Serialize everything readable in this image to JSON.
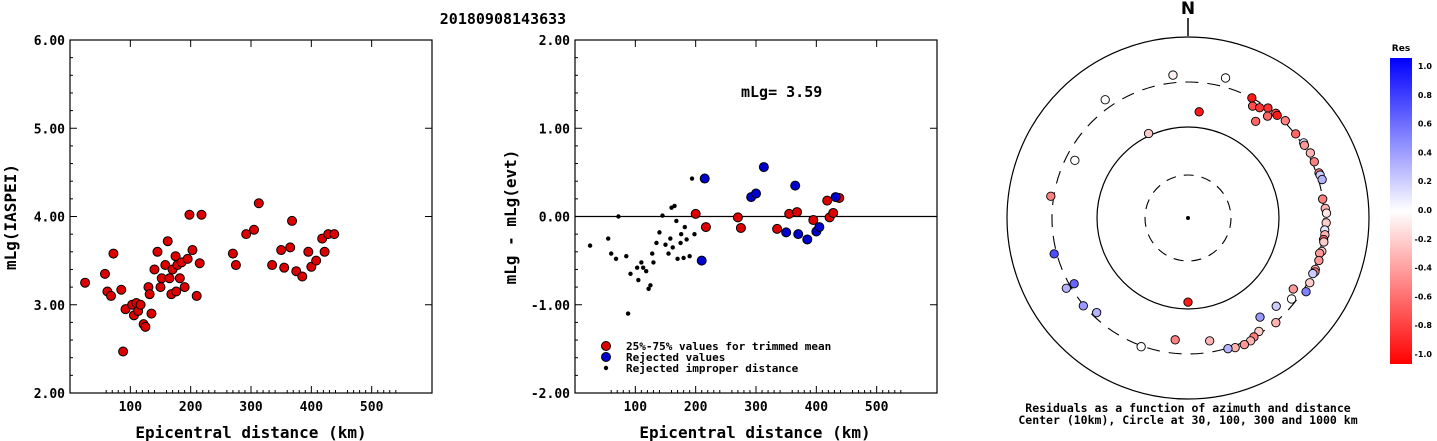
{
  "title": "20180908143633",
  "chart_data": [
    {
      "type": "scatter",
      "id": "magnitude-vs-distance",
      "xlabel": "Epicentral distance (km)",
      "ylabel": "mLg(IASPEI)",
      "xlim": [
        0,
        600
      ],
      "ylim": [
        2.0,
        6.0
      ],
      "xticks": [
        "100",
        "200",
        "300",
        "400",
        "500"
      ],
      "yticks": [
        "2.00",
        "3.00",
        "4.00",
        "5.00",
        "6.00"
      ],
      "marker_color": "#dd0000",
      "points": [
        [
          25,
          3.25
        ],
        [
          58,
          3.35
        ],
        [
          62,
          3.15
        ],
        [
          68,
          3.1
        ],
        [
          72,
          3.58
        ],
        [
          85,
          3.17
        ],
        [
          88,
          2.47
        ],
        [
          92,
          2.95
        ],
        [
          103,
          3.0
        ],
        [
          106,
          2.88
        ],
        [
          110,
          3.02
        ],
        [
          113,
          2.93
        ],
        [
          117,
          3.0
        ],
        [
          122,
          2.78
        ],
        [
          125,
          2.75
        ],
        [
          130,
          3.2
        ],
        [
          132,
          3.12
        ],
        [
          135,
          2.9
        ],
        [
          140,
          3.4
        ],
        [
          145,
          3.6
        ],
        [
          150,
          3.2
        ],
        [
          152,
          3.3
        ],
        [
          158,
          3.45
        ],
        [
          162,
          3.72
        ],
        [
          165,
          3.3
        ],
        [
          168,
          3.12
        ],
        [
          170,
          3.4
        ],
        [
          175,
          3.55
        ],
        [
          176,
          3.15
        ],
        [
          178,
          3.45
        ],
        [
          182,
          3.3
        ],
        [
          185,
          3.48
        ],
        [
          190,
          3.2
        ],
        [
          195,
          3.52
        ],
        [
          198,
          4.02
        ],
        [
          203,
          3.62
        ],
        [
          210,
          3.1
        ],
        [
          215,
          3.47
        ],
        [
          218,
          4.02
        ],
        [
          270,
          3.58
        ],
        [
          275,
          3.45
        ],
        [
          292,
          3.8
        ],
        [
          305,
          3.85
        ],
        [
          313,
          4.15
        ],
        [
          335,
          3.45
        ],
        [
          350,
          3.62
        ],
        [
          355,
          3.42
        ],
        [
          365,
          3.65
        ],
        [
          368,
          3.95
        ],
        [
          375,
          3.38
        ],
        [
          385,
          3.32
        ],
        [
          395,
          3.6
        ],
        [
          400,
          3.43
        ],
        [
          408,
          3.5
        ],
        [
          418,
          3.75
        ],
        [
          422,
          3.6
        ],
        [
          428,
          3.8
        ],
        [
          438,
          3.8
        ]
      ]
    },
    {
      "type": "scatter",
      "id": "residual-vs-distance",
      "xlabel": "Epicentral distance (km)",
      "ylabel": "mLg - mLg(evt)",
      "xlim": [
        0,
        600
      ],
      "ylim": [
        -2.0,
        2.0
      ],
      "xticks": [
        "100",
        "200",
        "300",
        "400",
        "500"
      ],
      "yticks": [
        "-2.00",
        "-1.00",
        "0.00",
        "1.00",
        "2.00"
      ],
      "annotation": "mLg= 3.59",
      "legend": [
        {
          "label": "25%-75% values for trimmed mean",
          "color": "#dd0000"
        },
        {
          "label": "Rejected values",
          "color": "#0000cc"
        },
        {
          "label": "Rejected improper distance",
          "color": "#000000"
        }
      ],
      "series": [
        {
          "name": "25%-75% values for trimmed mean",
          "color": "#dd0000",
          "points": [
            [
              200,
              0.03
            ],
            [
              217,
              -0.12
            ],
            [
              270,
              -0.01
            ],
            [
              275,
              -0.13
            ],
            [
              335,
              -0.14
            ],
            [
              355,
              0.03
            ],
            [
              368,
              0.05
            ],
            [
              395,
              -0.04
            ],
            [
              418,
              0.18
            ],
            [
              422,
              -0.01
            ],
            [
              428,
              0.04
            ],
            [
              438,
              0.21
            ]
          ]
        },
        {
          "name": "Rejected values",
          "color": "#0000cc",
          "points": [
            [
              210,
              -0.5
            ],
            [
              215,
              0.43
            ],
            [
              292,
              0.22
            ],
            [
              300,
              0.26
            ],
            [
              313,
              0.56
            ],
            [
              350,
              -0.18
            ],
            [
              365,
              0.35
            ],
            [
              370,
              -0.2
            ],
            [
              385,
              -0.26
            ],
            [
              400,
              -0.17
            ],
            [
              405,
              -0.12
            ],
            [
              432,
              0.22
            ]
          ]
        },
        {
          "name": "Rejected improper distance",
          "color": "#000000",
          "points": [
            [
              25,
              -0.33
            ],
            [
              55,
              -0.25
            ],
            [
              60,
              -0.42
            ],
            [
              68,
              -0.48
            ],
            [
              72,
              0.0
            ],
            [
              85,
              -0.45
            ],
            [
              88,
              -1.1
            ],
            [
              92,
              -0.65
            ],
            [
              103,
              -0.58
            ],
            [
              105,
              -0.72
            ],
            [
              110,
              -0.52
            ],
            [
              113,
              -0.58
            ],
            [
              118,
              -0.62
            ],
            [
              122,
              -0.82
            ],
            [
              125,
              -0.78
            ],
            [
              128,
              -0.42
            ],
            [
              130,
              -0.52
            ],
            [
              135,
              -0.3
            ],
            [
              140,
              -0.18
            ],
            [
              145,
              0.01
            ],
            [
              150,
              -0.32
            ],
            [
              155,
              -0.42
            ],
            [
              158,
              -0.25
            ],
            [
              160,
              0.1
            ],
            [
              162,
              -0.35
            ],
            [
              165,
              0.12
            ],
            [
              168,
              -0.05
            ],
            [
              170,
              -0.48
            ],
            [
              175,
              -0.3
            ],
            [
              176,
              -0.2
            ],
            [
              180,
              -0.47
            ],
            [
              182,
              -0.12
            ],
            [
              185,
              -0.26
            ],
            [
              190,
              -0.45
            ],
            [
              194,
              0.43
            ],
            [
              198,
              -0.2
            ]
          ]
        }
      ]
    },
    {
      "type": "polar-scatter",
      "id": "azimuthal-residuals",
      "north_label": "N",
      "caption": [
        "Residuals as a function of azimuth and distance",
        "Center (10km), Circle at 30, 100, 300 and 1000 km"
      ],
      "rings_km": [
        30,
        100,
        300,
        1000
      ],
      "colorbar": {
        "title": "Res",
        "min": -1.0,
        "max": 1.0,
        "ticks": [
          "1.0",
          "0.8",
          "0.6",
          "0.4",
          "0.2",
          "0.0",
          "-0.2",
          "-0.4",
          "-0.6",
          "-0.8",
          "-1.0"
        ]
      },
      "points_azimuth_distance_residual": [
        [
          -35,
          430,
          0.0
        ],
        [
          -25,
          110,
          -0.2
        ],
        [
          -6,
          420,
          -0.05
        ],
        [
          6,
          170,
          -0.9
        ],
        [
          15,
          440,
          0.0
        ],
        [
          28,
          300,
          -0.9
        ],
        [
          30,
          270,
          -0.7
        ],
        [
          33,
          280,
          -0.8
        ],
        [
          36,
          300,
          -0.8
        ],
        [
          35,
          220,
          -0.6
        ],
        [
          38,
          270,
          -0.6
        ],
        [
          40,
          310,
          -0.7
        ],
        [
          41,
          300,
          -0.9
        ],
        [
          45,
          325,
          -0.5
        ],
        [
          52,
          310,
          -0.6
        ],
        [
          57,
          330,
          0.1
        ],
        [
          58,
          320,
          -0.4
        ],
        [
          62,
          340,
          -0.3
        ],
        [
          66,
          335,
          -0.5
        ],
        [
          71,
          340,
          -0.5
        ],
        [
          72,
          345,
          0.2
        ],
        [
          74,
          355,
          0.3
        ],
        [
          82,
          300,
          -0.5
        ],
        [
          86,
          325,
          -0.3
        ],
        [
          88,
          340,
          -0.1
        ],
        [
          92,
          335,
          -0.2
        ],
        [
          95,
          320,
          0.1
        ],
        [
          97,
          330,
          -0.3
        ],
        [
          99,
          320,
          -0.6
        ],
        [
          100,
          330,
          -0.2
        ],
        [
          104,
          330,
          -0.2
        ],
        [
          105,
          305,
          -0.4
        ],
        [
          108,
          325,
          -0.4
        ],
        [
          112,
          320,
          -0.3
        ],
        [
          113,
          330,
          -0.5
        ],
        [
          114,
          310,
          0.2
        ],
        [
          118,
          330,
          -0.2
        ],
        [
          122,
          350,
          0.5
        ],
        [
          124,
          260,
          -0.4
        ],
        [
          128,
          280,
          0.0
        ],
        [
          135,
          250,
          0.2
        ],
        [
          140,
          310,
          -0.3
        ],
        [
          144,
          240,
          0.4
        ],
        [
          148,
          290,
          -0.2
        ],
        [
          151,
          300,
          -0.5
        ],
        [
          153,
          330,
          -0.3
        ],
        [
          156,
          340,
          -0.4
        ],
        [
          160,
          330,
          -0.3
        ],
        [
          163,
          310,
          0.3
        ],
        [
          170,
          250,
          -0.3
        ],
        [
          180,
          90,
          -0.9
        ],
        [
          186,
          240,
          -0.5
        ],
        [
          200,
          315,
          0.0
        ],
        [
          224,
          280,
          0.3
        ],
        [
          230,
          310,
          0.4
        ],
        [
          240,
          370,
          0.3
        ],
        [
          240,
          280,
          0.6
        ],
        [
          255,
          340,
          0.7
        ],
        [
          279,
          345,
          -0.5
        ],
        [
          297,
          260,
          0.0
        ],
        [
          0,
          0,
          0.0
        ]
      ]
    }
  ]
}
